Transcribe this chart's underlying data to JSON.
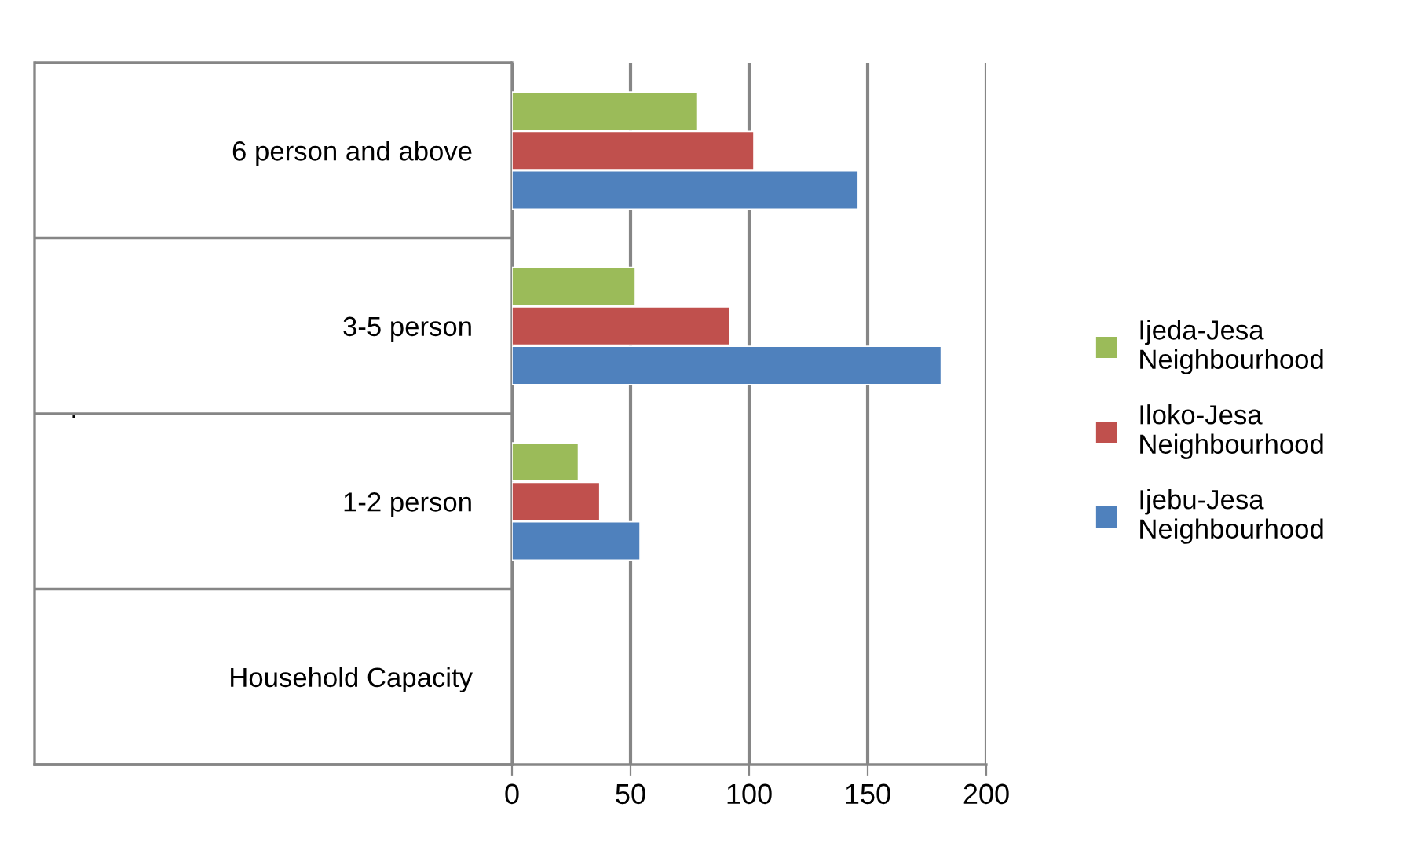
{
  "chart_data": {
    "type": "bar",
    "orientation": "horizontal",
    "annotations": [
      "."
    ],
    "categories": [
      "6 person and above",
      "3-5 person",
      "1-2 person",
      "Household Capacity"
    ],
    "series": [
      {
        "name": "Ijebu-Jesa Neighbourhood",
        "color": "#4f81bd",
        "values": [
          146,
          181,
          54,
          null
        ]
      },
      {
        "name": "Iloko-Jesa Neighbourhood",
        "color": "#c0504d",
        "values": [
          102,
          92,
          37,
          null
        ]
      },
      {
        "name": "Ijeda-Jesa Neighbourhood",
        "color": "#9bbb59",
        "values": [
          78,
          52,
          28,
          null
        ]
      }
    ],
    "xlim": [
      0,
      200
    ],
    "xticks": [
      0,
      50,
      100,
      150,
      200
    ],
    "grid": "x",
    "legend": "right"
  }
}
